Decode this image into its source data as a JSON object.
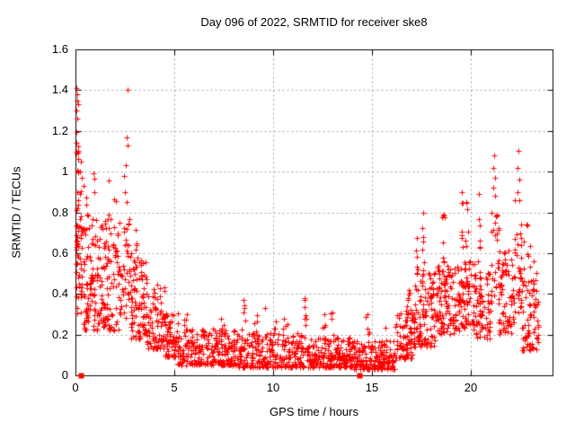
{
  "title": "Day 096 of 2022, SRMTID for receiver ske8",
  "chart_data": {
    "type": "scatter",
    "title": "Day 096 of 2022, SRMTID for receiver ske8",
    "xlabel": "GPS time / hours",
    "ylabel": "SRMTID / TECUs",
    "xlim": [
      0,
      24.15
    ],
    "ylim": [
      0,
      1.6
    ],
    "xticks": [
      0,
      5,
      10,
      15,
      20
    ],
    "xtick_labels": [
      "0",
      "5",
      "10",
      "15",
      "20"
    ],
    "yticks": [
      0,
      0.2,
      0.4,
      0.6,
      0.8,
      1.0,
      1.2,
      1.4,
      1.6
    ],
    "ytick_labels": [
      "0",
      "0.2",
      "0.4",
      "0.6",
      "0.8",
      "1",
      "1.2",
      "1.4",
      "1.6"
    ],
    "grid": "dotted",
    "grid_color": "#a0a0a0",
    "marker": "plus",
    "marker_color": "#ff0000",
    "notable_points": [
      [
        0.05,
        1.41
      ],
      [
        0.09,
        1.38
      ],
      [
        0.07,
        1.35
      ],
      [
        0.12,
        1.33
      ],
      [
        0.06,
        1.3
      ],
      [
        0.1,
        1.26
      ],
      [
        0.05,
        1.14
      ],
      [
        0.28,
        1.05
      ],
      [
        0.22,
        1.0
      ],
      [
        0.15,
        1.0
      ],
      [
        0.33,
        0.97
      ],
      [
        0.4,
        0.93
      ],
      [
        2.62,
        1.4
      ],
      [
        2.58,
        1.17
      ],
      [
        2.64,
        1.13
      ],
      [
        2.55,
        1.03
      ],
      [
        2.47,
        0.98
      ],
      [
        2.52,
        0.9
      ],
      [
        2.6,
        0.85
      ],
      [
        8.5,
        0.37
      ],
      [
        9.6,
        0.33
      ],
      [
        11.6,
        0.38
      ],
      [
        12.6,
        0.3
      ],
      [
        14.8,
        0.3
      ],
      [
        17.62,
        0.8
      ],
      [
        18.63,
        0.79
      ],
      [
        19.55,
        0.9
      ],
      [
        19.8,
        0.85
      ],
      [
        20.4,
        0.89
      ],
      [
        21.2,
        1.08
      ],
      [
        21.17,
        1.02
      ],
      [
        21.23,
        0.97
      ],
      [
        21.14,
        0.92
      ],
      [
        21.25,
        0.88
      ],
      [
        22.42,
        1.1
      ],
      [
        22.39,
        1.02
      ],
      [
        22.45,
        0.96
      ],
      [
        22.37,
        0.9
      ],
      [
        22.48,
        0.86
      ],
      [
        22.85,
        0.74
      ]
    ],
    "clusters": [
      {
        "x0": 0.02,
        "x1": 0.18,
        "ylo": 0.55,
        "yhi": 1.2,
        "n": 14,
        "k": 0.9
      },
      {
        "x0": 0.02,
        "x1": 0.35,
        "ylo": 0.28,
        "yhi": 0.95,
        "n": 48,
        "k": 1.2
      },
      {
        "x0": 0.35,
        "x1": 1.2,
        "ylo": 0.22,
        "yhi": 0.8,
        "n": 95,
        "k": 1.5
      },
      {
        "x0": 0.5,
        "x1": 1.1,
        "ylo": 0.78,
        "yhi": 1.02,
        "n": 6,
        "k": 1.0
      },
      {
        "x0": 1.2,
        "x1": 2.2,
        "ylo": 0.22,
        "yhi": 0.74,
        "n": 100,
        "k": 1.5
      },
      {
        "x0": 1.4,
        "x1": 2.05,
        "ylo": 0.74,
        "yhi": 0.96,
        "n": 8,
        "k": 1.0
      },
      {
        "x0": 2.2,
        "x1": 2.8,
        "ylo": 0.28,
        "yhi": 0.78,
        "n": 45,
        "k": 1.3
      },
      {
        "x0": 2.8,
        "x1": 3.6,
        "ylo": 0.18,
        "yhi": 0.58,
        "n": 85,
        "k": 1.4
      },
      {
        "x0": 2.9,
        "x1": 3.4,
        "ylo": 0.55,
        "yhi": 0.72,
        "n": 6,
        "k": 1.0
      },
      {
        "x0": 3.6,
        "x1": 4.5,
        "ylo": 0.13,
        "yhi": 0.45,
        "n": 80,
        "k": 1.5
      },
      {
        "x0": 4.5,
        "x1": 5.2,
        "ylo": 0.09,
        "yhi": 0.32,
        "n": 70,
        "k": 1.5
      },
      {
        "x0": 5.2,
        "x1": 8.2,
        "ylo": 0.05,
        "yhi": 0.23,
        "n": 230,
        "k": 1.7
      },
      {
        "x0": 5.45,
        "x1": 5.7,
        "ylo": 0.2,
        "yhi": 0.31,
        "n": 5,
        "k": 1.0
      },
      {
        "x0": 6.3,
        "x1": 6.55,
        "ylo": 0.18,
        "yhi": 0.27,
        "n": 4,
        "k": 1.0
      },
      {
        "x0": 7.35,
        "x1": 7.6,
        "ylo": 0.2,
        "yhi": 0.31,
        "n": 5,
        "k": 1.0
      },
      {
        "x0": 8.2,
        "x1": 11.5,
        "ylo": 0.04,
        "yhi": 0.21,
        "n": 250,
        "k": 1.7
      },
      {
        "x0": 8.4,
        "x1": 8.6,
        "ylo": 0.22,
        "yhi": 0.36,
        "n": 5,
        "k": 1.0
      },
      {
        "x0": 9.0,
        "x1": 9.2,
        "ylo": 0.2,
        "yhi": 0.32,
        "n": 4,
        "k": 1.0
      },
      {
        "x0": 10.0,
        "x1": 10.2,
        "ylo": 0.2,
        "yhi": 0.3,
        "n": 4,
        "k": 1.0
      },
      {
        "x0": 10.5,
        "x1": 10.75,
        "ylo": 0.18,
        "yhi": 0.28,
        "n": 4,
        "k": 1.0
      },
      {
        "x0": 11.5,
        "x1": 14.0,
        "ylo": 0.04,
        "yhi": 0.19,
        "n": 210,
        "k": 1.7
      },
      {
        "x0": 11.55,
        "x1": 11.72,
        "ylo": 0.22,
        "yhi": 0.37,
        "n": 6,
        "k": 1.0
      },
      {
        "x0": 12.5,
        "x1": 12.7,
        "ylo": 0.18,
        "yhi": 0.3,
        "n": 5,
        "k": 1.0
      },
      {
        "x0": 12.9,
        "x1": 13.1,
        "ylo": 0.2,
        "yhi": 0.32,
        "n": 4,
        "k": 1.0
      },
      {
        "x0": 14.0,
        "x1": 16.2,
        "ylo": 0.03,
        "yhi": 0.17,
        "n": 175,
        "k": 1.6
      },
      {
        "x0": 14.7,
        "x1": 14.9,
        "ylo": 0.18,
        "yhi": 0.29,
        "n": 4,
        "k": 1.0
      },
      {
        "x0": 15.5,
        "x1": 15.75,
        "ylo": 0.13,
        "yhi": 0.24,
        "n": 4,
        "k": 1.0
      },
      {
        "x0": 16.2,
        "x1": 17.2,
        "ylo": 0.08,
        "yhi": 0.32,
        "n": 90,
        "k": 1.4
      },
      {
        "x0": 16.7,
        "x1": 17.05,
        "ylo": 0.3,
        "yhi": 0.46,
        "n": 7,
        "k": 1.0
      },
      {
        "x0": 17.2,
        "x1": 18.2,
        "ylo": 0.14,
        "yhi": 0.52,
        "n": 100,
        "k": 1.25
      },
      {
        "x0": 17.25,
        "x1": 17.4,
        "ylo": 0.5,
        "yhi": 0.68,
        "n": 5,
        "k": 1.0
      },
      {
        "x0": 17.55,
        "x1": 17.7,
        "ylo": 0.5,
        "yhi": 0.8,
        "n": 6,
        "k": 1.0
      },
      {
        "x0": 18.2,
        "x1": 19.2,
        "ylo": 0.2,
        "yhi": 0.54,
        "n": 95,
        "k": 1.2
      },
      {
        "x0": 18.55,
        "x1": 18.72,
        "ylo": 0.55,
        "yhi": 0.8,
        "n": 7,
        "k": 1.0
      },
      {
        "x0": 19.2,
        "x1": 20.2,
        "ylo": 0.22,
        "yhi": 0.57,
        "n": 95,
        "k": 1.2
      },
      {
        "x0": 19.5,
        "x1": 19.62,
        "ylo": 0.58,
        "yhi": 0.9,
        "n": 6,
        "k": 1.0
      },
      {
        "x0": 19.75,
        "x1": 19.88,
        "ylo": 0.55,
        "yhi": 0.85,
        "n": 5,
        "k": 1.0
      },
      {
        "x0": 20.2,
        "x1": 21.0,
        "ylo": 0.18,
        "yhi": 0.52,
        "n": 70,
        "k": 1.25
      },
      {
        "x0": 20.35,
        "x1": 20.48,
        "ylo": 0.55,
        "yhi": 0.9,
        "n": 6,
        "k": 1.0
      },
      {
        "x0": 21.0,
        "x1": 21.45,
        "ylo": 0.3,
        "yhi": 0.82,
        "n": 26,
        "k": 1.0
      },
      {
        "x0": 21.4,
        "x1": 22.2,
        "ylo": 0.2,
        "yhi": 0.62,
        "n": 70,
        "k": 1.2
      },
      {
        "x0": 22.2,
        "x1": 22.6,
        "ylo": 0.3,
        "yhi": 0.86,
        "n": 36,
        "k": 1.0
      },
      {
        "x0": 22.6,
        "x1": 23.45,
        "ylo": 0.12,
        "yhi": 0.56,
        "n": 78,
        "k": 1.3
      },
      {
        "x0": 22.7,
        "x1": 23.05,
        "ylo": 0.58,
        "yhi": 0.75,
        "n": 5,
        "k": 1.0
      }
    ],
    "zero_markers": [
      [
        0.27,
        0
      ],
      [
        14.35,
        0
      ]
    ]
  }
}
